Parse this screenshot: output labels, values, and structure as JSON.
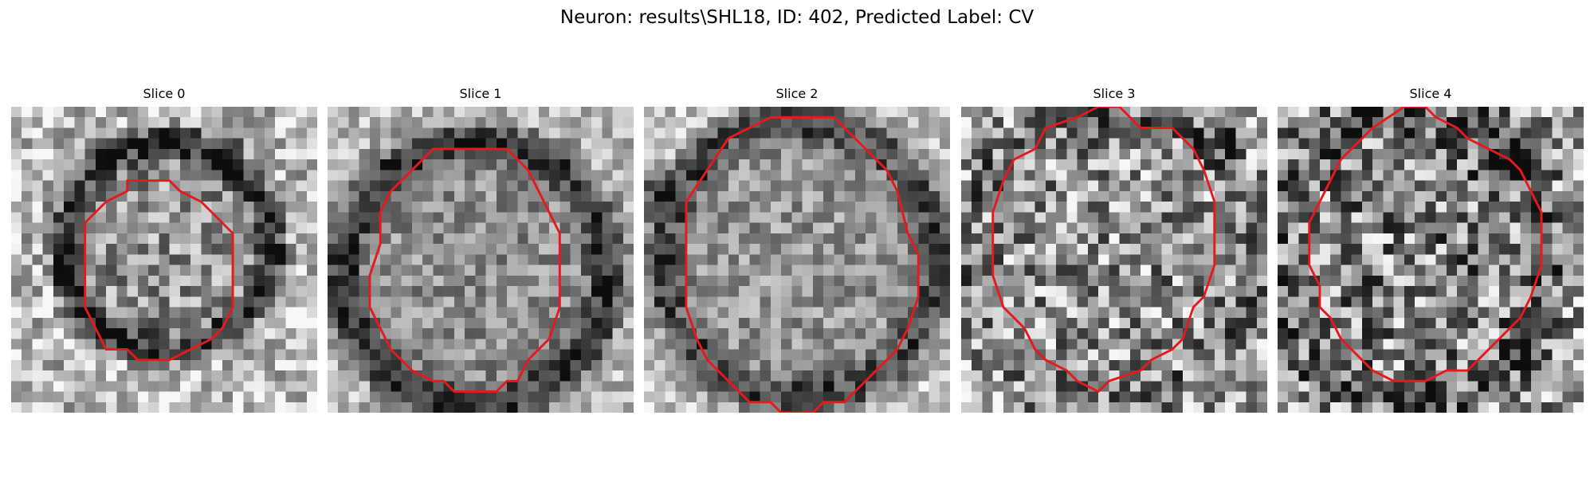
{
  "figure": {
    "title": "Neuron: results\\SHL18, ID: 402, Predicted Label: CV"
  },
  "colors": {
    "background": "#ffffff",
    "contour": "#e41a1c",
    "colormap": "grayscale"
  },
  "panels": [
    {
      "title": "Slice 0"
    },
    {
      "title": "Slice 1"
    },
    {
      "title": "Slice 2"
    },
    {
      "title": "Slice 3"
    },
    {
      "title": "Slice 4"
    }
  ]
}
